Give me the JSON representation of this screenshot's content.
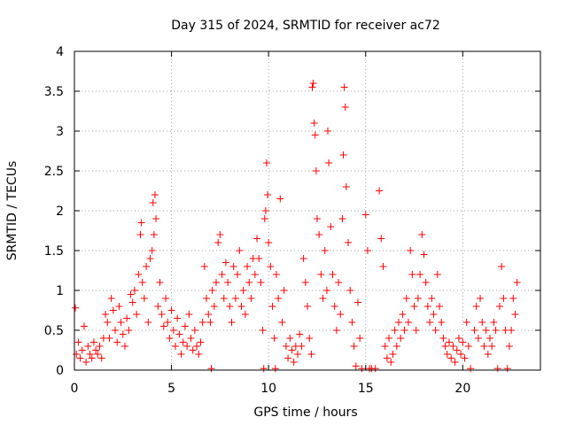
{
  "chart_data": {
    "type": "scatter",
    "title": "Day 315 of 2024, SRMTID for receiver ac72",
    "xlabel": "GPS time / hours",
    "ylabel": "SRMTID / TECUs",
    "xlim": [
      0,
      24
    ],
    "ylim": [
      0,
      4
    ],
    "xticks": [
      0,
      5,
      10,
      15,
      20
    ],
    "xtick_labels": [
      "0",
      "5",
      "10",
      "15",
      "20"
    ],
    "yticks": [
      0,
      0.5,
      1,
      1.5,
      2,
      2.5,
      3,
      3.5,
      4
    ],
    "ytick_labels": [
      "0",
      "0.5",
      "1",
      "1.5",
      "2",
      "2.5",
      "3",
      "3.5",
      "4"
    ],
    "grid": true,
    "marker": "plus",
    "color": "#ff0000",
    "series": [
      {
        "name": "SRMTID",
        "points": [
          [
            0.05,
            0.78
          ],
          [
            0.1,
            0.2
          ],
          [
            0.2,
            0.35
          ],
          [
            0.3,
            0.15
          ],
          [
            0.4,
            0.25
          ],
          [
            0.5,
            0.55
          ],
          [
            0.6,
            0.1
          ],
          [
            0.7,
            0.3
          ],
          [
            0.8,
            0.2
          ],
          [
            0.9,
            0.15
          ],
          [
            1.0,
            0.35
          ],
          [
            1.1,
            0.25
          ],
          [
            1.2,
            0.2
          ],
          [
            1.3,
            0.3
          ],
          [
            1.4,
            0.15
          ],
          [
            1.5,
            0.4
          ],
          [
            1.6,
            0.7
          ],
          [
            1.7,
            0.6
          ],
          [
            1.8,
            0.4
          ],
          [
            1.9,
            0.9
          ],
          [
            2.0,
            0.75
          ],
          [
            2.1,
            0.5
          ],
          [
            2.2,
            0.35
          ],
          [
            2.3,
            0.8
          ],
          [
            2.4,
            0.6
          ],
          [
            2.5,
            0.45
          ],
          [
            2.6,
            0.3
          ],
          [
            2.7,
            0.65
          ],
          [
            2.8,
            0.5
          ],
          [
            2.9,
            0.95
          ],
          [
            3.0,
            0.85
          ],
          [
            3.1,
            1.0
          ],
          [
            3.2,
            0.7
          ],
          [
            3.3,
            1.2
          ],
          [
            3.4,
            1.7
          ],
          [
            3.45,
            1.85
          ],
          [
            3.5,
            1.1
          ],
          [
            3.6,
            0.9
          ],
          [
            3.7,
            1.3
          ],
          [
            3.8,
            0.6
          ],
          [
            3.9,
            1.4
          ],
          [
            4.0,
            1.5
          ],
          [
            4.05,
            2.1
          ],
          [
            4.1,
            1.7
          ],
          [
            4.15,
            2.2
          ],
          [
            4.2,
            1.9
          ],
          [
            4.3,
            0.8
          ],
          [
            4.4,
            1.1
          ],
          [
            4.5,
            0.7
          ],
          [
            4.6,
            0.55
          ],
          [
            4.7,
            0.9
          ],
          [
            4.8,
            0.6
          ],
          [
            4.9,
            0.4
          ],
          [
            5.0,
            0.75
          ],
          [
            5.1,
            0.5
          ],
          [
            5.2,
            0.3
          ],
          [
            5.3,
            0.65
          ],
          [
            5.4,
            0.45
          ],
          [
            5.5,
            0.2
          ],
          [
            5.6,
            0.35
          ],
          [
            5.7,
            0.55
          ],
          [
            5.8,
            0.3
          ],
          [
            5.9,
            0.7
          ],
          [
            6.0,
            0.4
          ],
          [
            6.1,
            0.25
          ],
          [
            6.2,
            0.5
          ],
          [
            6.3,
            0.3
          ],
          [
            6.4,
            0.2
          ],
          [
            6.5,
            0.35
          ],
          [
            6.6,
            0.6
          ],
          [
            6.7,
            1.3
          ],
          [
            6.8,
            0.9
          ],
          [
            6.9,
            0.7
          ],
          [
            7.0,
            0.6
          ],
          [
            7.05,
            0.02
          ],
          [
            7.1,
            1.0
          ],
          [
            7.2,
            0.8
          ],
          [
            7.3,
            1.1
          ],
          [
            7.4,
            1.6
          ],
          [
            7.5,
            1.7
          ],
          [
            7.6,
            1.2
          ],
          [
            7.7,
            0.9
          ],
          [
            7.8,
            1.35
          ],
          [
            7.9,
            1.1
          ],
          [
            8.0,
            0.8
          ],
          [
            8.1,
            0.6
          ],
          [
            8.2,
            1.3
          ],
          [
            8.3,
            0.9
          ],
          [
            8.4,
            1.2
          ],
          [
            8.5,
            1.5
          ],
          [
            8.6,
            0.8
          ],
          [
            8.7,
            1.0
          ],
          [
            8.8,
            0.7
          ],
          [
            8.9,
            1.3
          ],
          [
            9.0,
            1.1
          ],
          [
            9.1,
            0.9
          ],
          [
            9.2,
            1.4
          ],
          [
            9.3,
            1.2
          ],
          [
            9.4,
            1.65
          ],
          [
            9.5,
            1.4
          ],
          [
            9.6,
            1.1
          ],
          [
            9.7,
            0.5
          ],
          [
            9.75,
            0.02
          ],
          [
            9.8,
            1.9
          ],
          [
            9.85,
            2.0
          ],
          [
            9.9,
            2.6
          ],
          [
            9.95,
            2.2
          ],
          [
            10.0,
            1.6
          ],
          [
            10.1,
            1.3
          ],
          [
            10.2,
            0.8
          ],
          [
            10.3,
            0.4
          ],
          [
            10.35,
            0.02
          ],
          [
            10.4,
            1.2
          ],
          [
            10.5,
            0.9
          ],
          [
            10.6,
            2.15
          ],
          [
            10.7,
            0.6
          ],
          [
            10.8,
            1.0
          ],
          [
            10.9,
            0.3
          ],
          [
            11.0,
            0.15
          ],
          [
            11.1,
            0.4
          ],
          [
            11.2,
            0.25
          ],
          [
            11.3,
            0.1
          ],
          [
            11.4,
            0.3
          ],
          [
            11.5,
            0.2
          ],
          [
            11.6,
            0.45
          ],
          [
            11.7,
            0.3
          ],
          [
            11.8,
            1.4
          ],
          [
            11.9,
            1.1
          ],
          [
            12.0,
            0.8
          ],
          [
            12.1,
            0.4
          ],
          [
            12.2,
            0.2
          ],
          [
            12.25,
            3.55
          ],
          [
            12.3,
            3.6
          ],
          [
            12.35,
            3.1
          ],
          [
            12.4,
            2.95
          ],
          [
            12.45,
            2.5
          ],
          [
            12.5,
            1.9
          ],
          [
            12.6,
            1.7
          ],
          [
            12.7,
            1.2
          ],
          [
            12.8,
            0.9
          ],
          [
            12.9,
            1.5
          ],
          [
            13.0,
            1.0
          ],
          [
            13.05,
            3.0
          ],
          [
            13.1,
            2.6
          ],
          [
            13.2,
            1.8
          ],
          [
            13.3,
            1.2
          ],
          [
            13.4,
            0.8
          ],
          [
            13.5,
            0.5
          ],
          [
            13.6,
            1.1
          ],
          [
            13.7,
            0.7
          ],
          [
            13.8,
            1.9
          ],
          [
            13.85,
            2.7
          ],
          [
            13.9,
            3.55
          ],
          [
            13.95,
            3.3
          ],
          [
            14.0,
            2.3
          ],
          [
            14.1,
            1.6
          ],
          [
            14.2,
            1.0
          ],
          [
            14.3,
            0.6
          ],
          [
            14.4,
            0.3
          ],
          [
            14.5,
            0.05
          ],
          [
            14.6,
            0.85
          ],
          [
            14.7,
            0.4
          ],
          [
            14.8,
            0.02
          ],
          [
            15.0,
            1.95
          ],
          [
            15.1,
            1.5
          ],
          [
            15.2,
            0.02
          ],
          [
            15.3,
            0.02
          ],
          [
            15.5,
            0.02
          ],
          [
            15.7,
            2.25
          ],
          [
            15.8,
            1.65
          ],
          [
            15.9,
            1.3
          ],
          [
            16.0,
            0.3
          ],
          [
            16.1,
            0.15
          ],
          [
            16.2,
            0.4
          ],
          [
            16.3,
            0.1
          ],
          [
            16.4,
            0.2
          ],
          [
            16.5,
            0.5
          ],
          [
            16.6,
            0.3
          ],
          [
            16.7,
            0.6
          ],
          [
            16.8,
            0.4
          ],
          [
            16.9,
            0.7
          ],
          [
            17.0,
            0.5
          ],
          [
            17.1,
            0.9
          ],
          [
            17.2,
            0.6
          ],
          [
            17.3,
            1.5
          ],
          [
            17.4,
            1.2
          ],
          [
            17.5,
            0.8
          ],
          [
            17.6,
            0.5
          ],
          [
            17.7,
            0.9
          ],
          [
            17.8,
            1.2
          ],
          [
            17.9,
            1.7
          ],
          [
            18.0,
            1.45
          ],
          [
            18.1,
            1.1
          ],
          [
            18.2,
            0.8
          ],
          [
            18.3,
            0.6
          ],
          [
            18.4,
            0.9
          ],
          [
            18.5,
            0.7
          ],
          [
            18.6,
            0.5
          ],
          [
            18.7,
            1.2
          ],
          [
            18.8,
            0.8
          ],
          [
            18.9,
            0.6
          ],
          [
            19.0,
            0.4
          ],
          [
            19.1,
            0.3
          ],
          [
            19.2,
            0.2
          ],
          [
            19.3,
            0.35
          ],
          [
            19.4,
            0.15
          ],
          [
            19.5,
            0.3
          ],
          [
            19.6,
            0.1
          ],
          [
            19.7,
            0.25
          ],
          [
            19.8,
            0.4
          ],
          [
            19.9,
            0.2
          ],
          [
            20.0,
            0.35
          ],
          [
            20.1,
            0.15
          ],
          [
            20.2,
            0.6
          ],
          [
            20.3,
            0.3
          ],
          [
            20.4,
            0.02
          ],
          [
            20.6,
            0.5
          ],
          [
            20.7,
            0.8
          ],
          [
            20.8,
            0.4
          ],
          [
            20.9,
            0.9
          ],
          [
            21.0,
            0.6
          ],
          [
            21.1,
            0.3
          ],
          [
            21.2,
            0.5
          ],
          [
            21.3,
            0.2
          ],
          [
            21.4,
            0.4
          ],
          [
            21.5,
            0.3
          ],
          [
            21.6,
            0.6
          ],
          [
            21.7,
            0.5
          ],
          [
            21.8,
            0.02
          ],
          [
            21.9,
            0.8
          ],
          [
            22.0,
            1.3
          ],
          [
            22.1,
            0.9
          ],
          [
            22.2,
            0.5
          ],
          [
            22.3,
            0.02
          ],
          [
            22.4,
            0.3
          ],
          [
            22.5,
            0.5
          ],
          [
            22.6,
            0.9
          ],
          [
            22.7,
            0.7
          ],
          [
            22.8,
            1.1
          ]
        ]
      }
    ]
  }
}
